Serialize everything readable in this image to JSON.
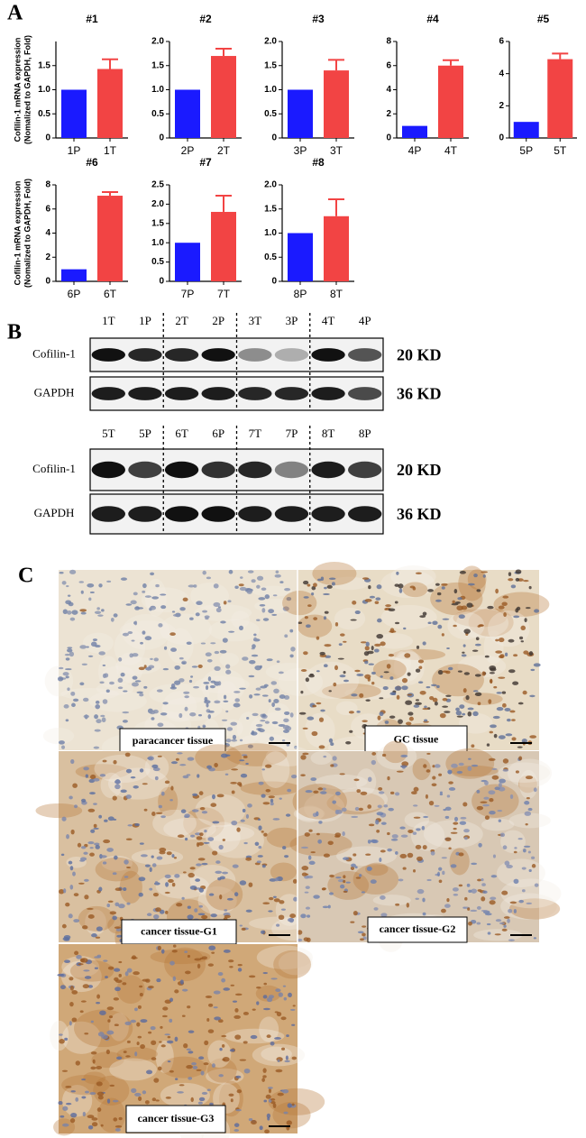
{
  "panel_labels": [
    "A",
    "B",
    "C"
  ],
  "chart_data": [
    {
      "type": "bar",
      "title": "#1",
      "ylabel": [
        "Cofilin-1 mRNA expression",
        "(Nomalized to GAPDH, Fold)"
      ],
      "categories": [
        "1P",
        "1T"
      ],
      "values": [
        1.0,
        1.43
      ],
      "errors": [
        null,
        0.2
      ],
      "colors": [
        "#1a1aff",
        "#f24444"
      ],
      "ylim": [
        0,
        2
      ],
      "yticks": [
        0,
        0.5,
        {
          "value": 1,
          "label": "1.0"
        },
        1.5
      ]
    },
    {
      "type": "bar",
      "title": "#2",
      "categories": [
        "2P",
        "2T"
      ],
      "values": [
        1.0,
        1.7
      ],
      "errors": [
        null,
        0.15
      ],
      "colors": [
        "#1a1aff",
        "#f24444"
      ],
      "ylim": [
        0,
        2
      ],
      "yticks": [
        0,
        0.5,
        {
          "value": 1,
          "label": "1.0"
        },
        1.5,
        {
          "value": 2,
          "label": "2.0"
        }
      ]
    },
    {
      "type": "bar",
      "title": "#3",
      "categories": [
        "3P",
        "3T"
      ],
      "values": [
        1.0,
        1.4
      ],
      "errors": [
        null,
        0.22
      ],
      "colors": [
        "#1a1aff",
        "#f24444"
      ],
      "ylim": [
        0,
        2
      ],
      "yticks": [
        0,
        0.5,
        {
          "value": 1,
          "label": "1.0"
        },
        1.5,
        {
          "value": 2,
          "label": "2.0"
        }
      ]
    },
    {
      "type": "bar",
      "title": "#4",
      "categories": [
        "4P",
        "4T"
      ],
      "values": [
        1.0,
        6.0
      ],
      "errors": [
        null,
        0.45
      ],
      "colors": [
        "#1a1aff",
        "#f24444"
      ],
      "ylim": [
        0,
        8
      ],
      "yticks": [
        0,
        2,
        4,
        6,
        8
      ]
    },
    {
      "type": "bar",
      "title": "#5",
      "categories": [
        "5P",
        "5T"
      ],
      "values": [
        1.0,
        4.9
      ],
      "errors": [
        null,
        0.35
      ],
      "colors": [
        "#1a1aff",
        "#f24444"
      ],
      "ylim": [
        0,
        6
      ],
      "yticks": [
        0,
        2,
        4,
        6
      ]
    },
    {
      "type": "bar",
      "title": "#6",
      "ylabel": [
        "Cofilin-1 mRNA expression",
        "(Nomalized to GAPDH, Fold)"
      ],
      "categories": [
        "6P",
        "6T"
      ],
      "values": [
        1.0,
        7.1
      ],
      "errors": [
        null,
        0.3
      ],
      "colors": [
        "#1a1aff",
        "#f24444"
      ],
      "ylim": [
        0,
        8
      ],
      "yticks": [
        0,
        2,
        4,
        6,
        8
      ]
    },
    {
      "type": "bar",
      "title": "#7",
      "categories": [
        "7P",
        "7T"
      ],
      "values": [
        1.0,
        1.8
      ],
      "errors": [
        null,
        0.42
      ],
      "colors": [
        "#1a1aff",
        "#f24444"
      ],
      "ylim": [
        0,
        2.5
      ],
      "yticks": [
        0,
        0.5,
        {
          "value": 1,
          "label": "1.0"
        },
        1.5,
        {
          "value": 2,
          "label": "2.0"
        },
        2.5
      ]
    },
    {
      "type": "bar",
      "title": "#8",
      "categories": [
        "8P",
        "8T"
      ],
      "values": [
        1.0,
        1.35
      ],
      "errors": [
        null,
        0.35
      ],
      "colors": [
        "#1a1aff",
        "#f24444"
      ],
      "ylim": [
        0,
        2
      ],
      "yticks": [
        0,
        0.5,
        {
          "value": 1,
          "label": "1.0"
        },
        1.5,
        {
          "value": 2,
          "label": "2.0"
        }
      ]
    }
  ],
  "blots": [
    {
      "lanes": [
        "1T",
        "1P",
        "2T",
        "2P",
        "3T",
        "3P",
        "4T",
        "4P"
      ],
      "rows": [
        {
          "protein": "Cofilin-1",
          "size": "20 KD"
        },
        {
          "protein": "GAPDH",
          "size": "36 KD"
        }
      ]
    },
    {
      "lanes": [
        "5T",
        "5P",
        "6T",
        "6P",
        "7T",
        "7P",
        "8T",
        "8P"
      ],
      "rows": [
        {
          "protein": "Cofilin-1",
          "size": "20 KD"
        },
        {
          "protein": "GAPDH",
          "size": "36 KD"
        }
      ]
    }
  ],
  "images": [
    {
      "caption": "paracancer tissue"
    },
    {
      "caption": "GC tissue"
    },
    {
      "caption": "cancer tissue-G1"
    },
    {
      "caption": "cancer tissue-G2"
    },
    {
      "caption": "cancer tissue-G3"
    }
  ]
}
